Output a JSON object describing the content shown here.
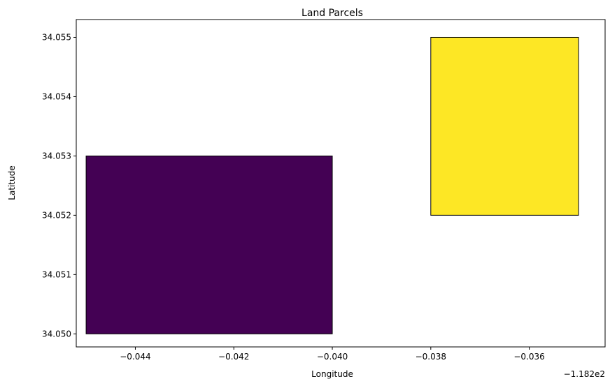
{
  "chart_data": {
    "type": "polygon",
    "title": "Land Parcels",
    "x_label": "Longitude",
    "y_label": "Latitude",
    "x_offset": "−1.182e2",
    "series": [
      {
        "color": "#440154",
        "x": [
          -0.045,
          -0.04
        ],
        "y": [
          34.05,
          34.053
        ]
      },
      {
        "color": "#fde725",
        "x": [
          -0.038,
          -0.035
        ],
        "y": [
          34.052,
          34.055
        ]
      }
    ],
    "edge_color": "#000000",
    "xlim": [
      -0.0452,
      -0.03446
    ],
    "ylim": [
      34.04978,
      34.0553
    ],
    "xticks": [
      {
        "value": -0.044,
        "label": "−0.044"
      },
      {
        "value": -0.042,
        "label": "−0.042"
      },
      {
        "value": -0.04,
        "label": "−0.040"
      },
      {
        "value": -0.038,
        "label": "−0.038"
      },
      {
        "value": -0.036,
        "label": "−0.036"
      }
    ],
    "yticks": [
      {
        "value": 34.05,
        "label": "34.050"
      },
      {
        "value": 34.051,
        "label": "34.051"
      },
      {
        "value": 34.052,
        "label": "34.052"
      },
      {
        "value": 34.053,
        "label": "34.053"
      },
      {
        "value": 34.054,
        "label": "34.054"
      },
      {
        "value": 34.055,
        "label": "34.055"
      }
    ]
  }
}
